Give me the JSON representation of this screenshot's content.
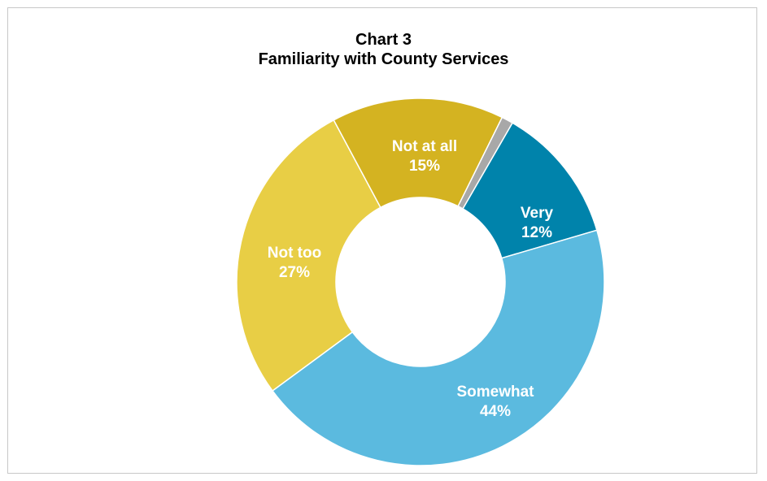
{
  "chart_data": {
    "type": "pie",
    "title": "Chart 3",
    "subtitle": "Familiarity with County Services",
    "donut": true,
    "slices": [
      {
        "label": "Very",
        "pct_label": "12%",
        "value": 12,
        "color": "#0083ab"
      },
      {
        "label": "Somewhat",
        "pct_label": "44%",
        "value": 44,
        "color": "#5bbadf"
      },
      {
        "label": "Not too",
        "pct_label": "27%",
        "value": 27,
        "color": "#e8ce45"
      },
      {
        "label": "Not at all",
        "pct_label": "15%",
        "value": 15,
        "color": "#d4b321"
      },
      {
        "label": "",
        "pct_label": "",
        "value": 1,
        "color": "#a8a8a8"
      }
    ]
  }
}
